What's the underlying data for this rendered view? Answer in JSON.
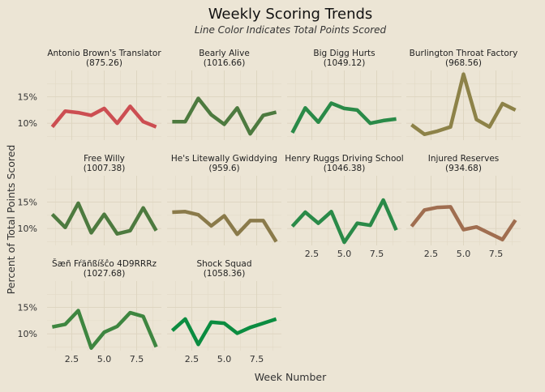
{
  "chart_data": {
    "type": "line",
    "title": "Weekly Scoring Trends",
    "subtitle": "Line Color Indicates Total Points Scored",
    "xlabel": "Week Number",
    "ylabel": "Percent of Total Points Scored",
    "xlim": [
      0.6,
      9.4
    ],
    "ylim": [
      6.8,
      20.0
    ],
    "x_ticks": [
      2.5,
      5.0,
      7.5
    ],
    "x_tick_labels": [
      "2.5",
      "5.0",
      "7.5"
    ],
    "y_ticks": [
      10,
      15
    ],
    "y_tick_labels": [
      "10%",
      "15%"
    ],
    "grid": true,
    "x": [
      1,
      2,
      3,
      4,
      5,
      6,
      7,
      8,
      9
    ],
    "series": [
      {
        "name": "Antonio Brown's Translator",
        "total_label": "(875.26)",
        "color": "#cc4e52",
        "values": [
          9.3,
          12.3,
          12.0,
          11.5,
          12.8,
          10.0,
          13.2,
          10.3,
          9.3
        ]
      },
      {
        "name": "Bearly Alive",
        "total_label": "(1016.66)",
        "color": "#4d7a3f",
        "values": [
          10.3,
          10.3,
          14.7,
          11.6,
          9.8,
          12.9,
          8.0,
          11.5,
          12.1
        ]
      },
      {
        "name": "Big Digg Hurts",
        "total_label": "(1049.12)",
        "color": "#2a8a48",
        "values": [
          8.2,
          12.9,
          10.2,
          13.8,
          12.8,
          12.5,
          10.0,
          10.5,
          10.8
        ]
      },
      {
        "name": "Burlington Throat Factory",
        "total_label": "(968.56)",
        "color": "#8d8248",
        "values": [
          9.7,
          7.9,
          8.5,
          9.3,
          19.3,
          10.7,
          9.3,
          13.7,
          12.5
        ]
      },
      {
        "name": "Free Willy",
        "total_label": "(1007.38)",
        "color": "#4d7a3f",
        "values": [
          12.7,
          10.2,
          14.8,
          9.2,
          12.7,
          9.0,
          9.6,
          13.9,
          9.6
        ]
      },
      {
        "name": "He's Litewally Gwiddying",
        "total_label": "(959.6)",
        "color": "#8a7a4a",
        "values": [
          13.1,
          13.2,
          12.6,
          10.5,
          12.4,
          8.9,
          11.5,
          11.5,
          7.5
        ]
      },
      {
        "name": "Henry Ruggs Driving School",
        "total_label": "(1046.38)",
        "color": "#2a8a48",
        "values": [
          10.4,
          13.1,
          11.0,
          13.2,
          7.4,
          11.0,
          10.6,
          15.4,
          9.7
        ]
      },
      {
        "name": "Injured Reserves",
        "total_label": "(934.68)",
        "color": "#a06e50",
        "values": [
          10.4,
          13.5,
          14.0,
          14.1,
          9.8,
          10.3,
          9.1,
          7.9,
          11.6
        ]
      },
      {
        "name": "Šæñ Fŕäñßíšĉo 4D9RRRz",
        "total_label": "(1027.68)",
        "color": "#3e8640",
        "values": [
          11.3,
          11.8,
          14.4,
          7.3,
          10.3,
          11.4,
          14.0,
          13.3,
          7.5
        ]
      },
      {
        "name": "Shock Squad",
        "total_label": "(1058.36)",
        "color": "#0b8c40",
        "values": [
          10.6,
          12.8,
          8.0,
          12.2,
          12.0,
          10.1,
          11.2,
          12.0,
          12.8
        ]
      }
    ]
  }
}
